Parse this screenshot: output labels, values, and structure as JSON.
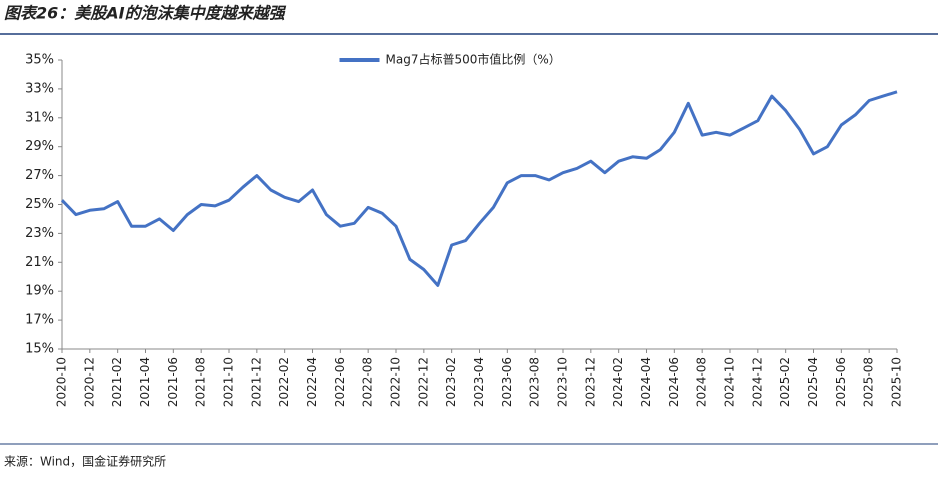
{
  "chart_data": {
    "type": "line",
    "title": "图表26：美股AI的泡沫集中度越来越强",
    "source": "来源：Wind，国金证券研究所",
    "x": [
      "2020-10",
      "2020-11",
      "2020-12",
      "2021-01",
      "2021-02",
      "2021-03",
      "2021-04",
      "2021-05",
      "2021-06",
      "2021-07",
      "2021-08",
      "2021-09",
      "2021-10",
      "2021-11",
      "2021-12",
      "2022-01",
      "2022-02",
      "2022-03",
      "2022-04",
      "2022-05",
      "2022-06",
      "2022-07",
      "2022-08",
      "2022-09",
      "2022-10",
      "2022-11",
      "2022-12",
      "2023-01",
      "2023-02",
      "2023-03",
      "2023-04",
      "2023-05",
      "2023-06",
      "2023-07",
      "2023-08",
      "2023-09",
      "2023-10",
      "2023-11",
      "2023-12",
      "2024-01",
      "2024-02",
      "2024-03",
      "2024-04",
      "2024-05",
      "2024-06",
      "2024-07",
      "2024-08",
      "2024-09",
      "2024-10",
      "2024-11",
      "2024-12",
      "2025-01",
      "2025-02",
      "2025-03",
      "2025-04",
      "2025-05",
      "2025-06",
      "2025-07",
      "2025-08",
      "2025-09",
      "2025-10"
    ],
    "series": [
      {
        "name": "Mag7占标普500市值比例（%）",
        "color": "#4472c4",
        "values": [
          25.3,
          24.3,
          24.6,
          24.7,
          25.2,
          23.5,
          23.5,
          24.0,
          23.2,
          24.3,
          25.0,
          24.9,
          25.3,
          26.2,
          27.0,
          26.0,
          25.5,
          25.2,
          26.0,
          24.3,
          23.5,
          23.7,
          24.8,
          24.4,
          23.5,
          21.2,
          20.5,
          19.4,
          22.2,
          22.5,
          23.7,
          24.8,
          26.5,
          27.0,
          27.0,
          26.7,
          27.2,
          27.5,
          28.0,
          27.2,
          28.0,
          28.3,
          28.2,
          28.8,
          30.0,
          32.0,
          29.8,
          30.0,
          29.8,
          30.3,
          30.8,
          32.5,
          31.5,
          30.2,
          28.5,
          29.0,
          30.5,
          31.2,
          32.2,
          32.5,
          32.8
        ]
      }
    ],
    "xlim": [
      "2020-10",
      "2025-10"
    ],
    "xticks": [
      "2020-10",
      "2020-12",
      "2021-02",
      "2021-04",
      "2021-06",
      "2021-08",
      "2021-10",
      "2021-12",
      "2022-02",
      "2022-04",
      "2022-06",
      "2022-08",
      "2022-10",
      "2022-12",
      "2023-02",
      "2023-04",
      "2023-06",
      "2023-08",
      "2023-10",
      "2023-12",
      "2024-02",
      "2024-04",
      "2024-06",
      "2024-08",
      "2024-10",
      "2024-12",
      "2025-02",
      "2025-04",
      "2025-06",
      "2025-08",
      "2025-10"
    ],
    "ylim": [
      15,
      35
    ],
    "yticks": [
      {
        "value": 15,
        "label": "15%"
      },
      {
        "value": 17,
        "label": "17%"
      },
      {
        "value": 19,
        "label": "19%"
      },
      {
        "value": 21,
        "label": "21%"
      },
      {
        "value": 23,
        "label": "23%"
      },
      {
        "value": 25,
        "label": "25%"
      },
      {
        "value": 27,
        "label": "27%"
      },
      {
        "value": 29,
        "label": "29%"
      },
      {
        "value": 31,
        "label": "31%"
      },
      {
        "value": 33,
        "label": "33%"
      },
      {
        "value": 35,
        "label": "35%"
      }
    ],
    "legend": "top"
  }
}
